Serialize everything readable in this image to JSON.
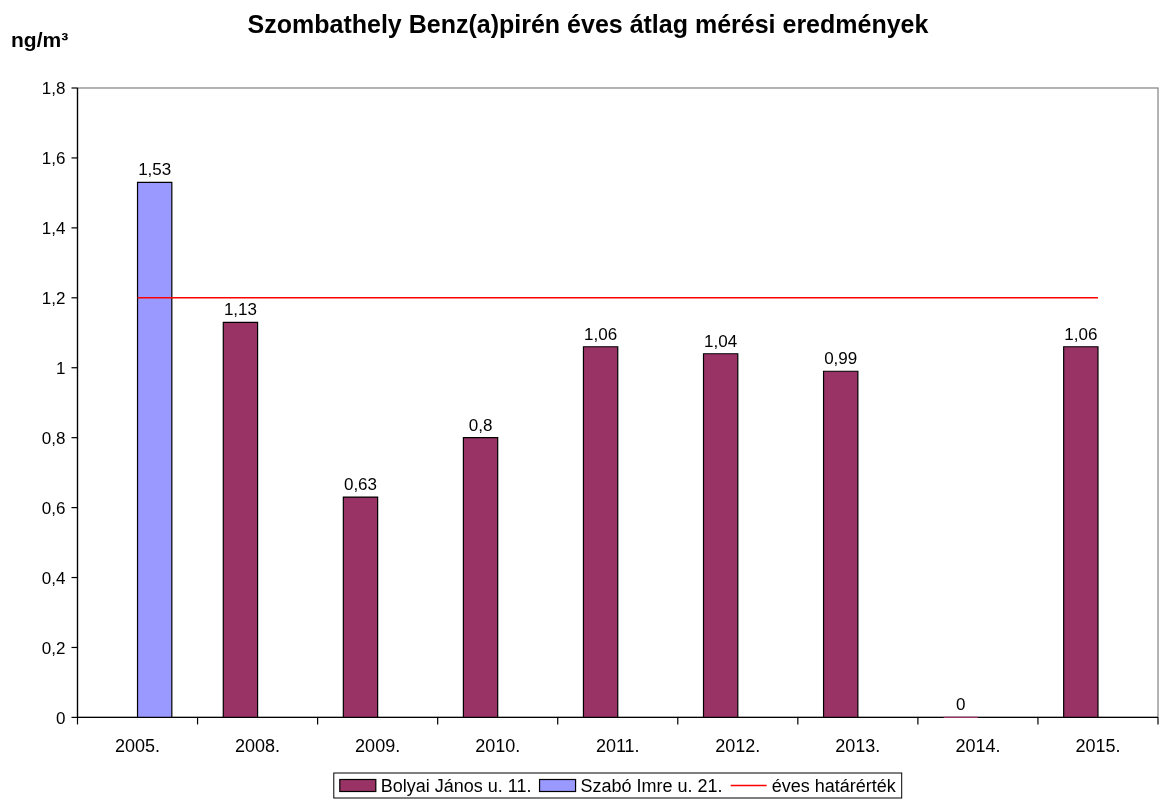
{
  "chart_data": {
    "type": "bar",
    "title": "Szombathely Benz(a)pirén éves átlag mérési eredmények",
    "ylabel": "ng/m³",
    "categories": [
      "2005.",
      "2008.",
      "2009.",
      "2010.",
      "2011.",
      "2012.",
      "2013.",
      "2014.",
      "2015."
    ],
    "series": [
      {
        "name": "Bolyai János u. 11.",
        "color": "#993366",
        "values": [
          null,
          1.13,
          0.63,
          0.8,
          1.06,
          1.04,
          0.99,
          0,
          1.06
        ],
        "value_labels": [
          null,
          "1,13",
          "0,63",
          "0,8",
          "1,06",
          "1,04",
          "0,99",
          "0",
          "1,06"
        ]
      },
      {
        "name": "Szabó Imre u. 21.",
        "color": "#9999ff",
        "values": [
          1.53,
          null,
          null,
          null,
          null,
          null,
          null,
          null,
          null
        ],
        "value_labels": [
          "1,53",
          null,
          null,
          null,
          null,
          null,
          null,
          null,
          null
        ]
      },
      {
        "name": "éves határérték",
        "type": "line",
        "color": "#ff0000",
        "values": [
          1.2,
          1.2,
          1.2,
          1.2,
          1.2,
          1.2,
          1.2,
          1.2,
          1.2
        ]
      }
    ],
    "ylim": [
      0,
      1.8
    ],
    "yticks": [
      0,
      {
        "value": 0.2,
        "label": "0,2"
      },
      {
        "value": 0.4,
        "label": "0,4"
      },
      {
        "value": 0.6,
        "label": "0,6"
      },
      {
        "value": 0.8,
        "label": "0,8"
      },
      1,
      {
        "value": 1.2,
        "label": "1,2"
      },
      {
        "value": 1.4,
        "label": "1,4"
      },
      {
        "value": 1.6,
        "label": "1,6"
      },
      {
        "value": 1.8,
        "label": "1,8"
      }
    ],
    "legend": "bottom"
  }
}
